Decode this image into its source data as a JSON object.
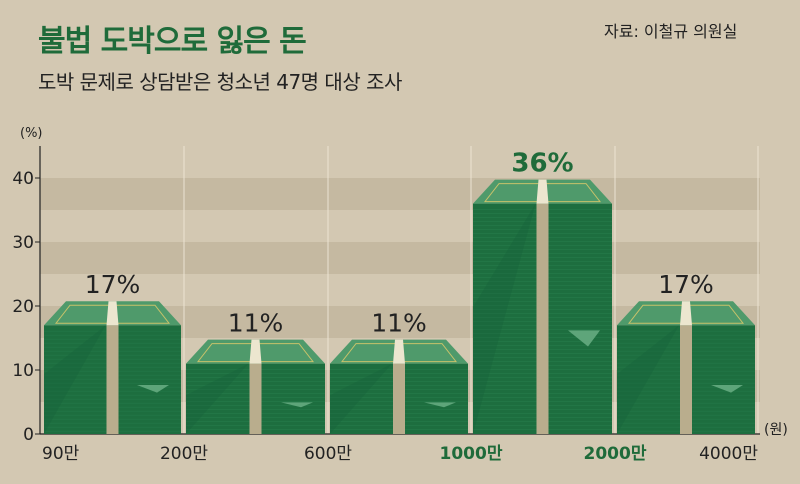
{
  "header": {
    "title": "불법 도박으로 잃은 돈",
    "subtitle": "도박 문제로 상담받은 청소년 47명 대상 조사",
    "source": "자료: 이철규 의원실"
  },
  "colors": {
    "background": "#d3c8b2",
    "band_dark": "#c5b9a1",
    "title_green": "#1f6b3a",
    "bar_green": "#1d6e3f",
    "bar_top": "#4f9a6b",
    "ribbon": "#ece6cf",
    "highlight_label": "#1f6b3a"
  },
  "chart_data": {
    "type": "bar",
    "title": "불법 도박으로 잃은 돈",
    "subtitle": "도박 문제로 상담받은 청소년 47명 대상 조사",
    "ylabel": "(%)",
    "xlabel": "(원)",
    "ylim": [
      0,
      45
    ],
    "yticks": [
      "0",
      "10",
      "20",
      "30",
      "40"
    ],
    "ytick_values": [
      0,
      10,
      20,
      30,
      40
    ],
    "xticks": [
      "90만",
      "200만",
      "600만",
      "1000만",
      "2000만",
      "4000만"
    ],
    "highlight_xticks": [
      3,
      4
    ],
    "categories": [
      "90만~200만",
      "200만~600만",
      "600만~1000만",
      "1000만~2000만",
      "2000만~4000만"
    ],
    "values": [
      17,
      11,
      11,
      36,
      17
    ],
    "value_labels": [
      "17%",
      "11%",
      "11%",
      "36%",
      "17%"
    ],
    "highlight_index": 3,
    "grid": true,
    "legend": "none"
  }
}
